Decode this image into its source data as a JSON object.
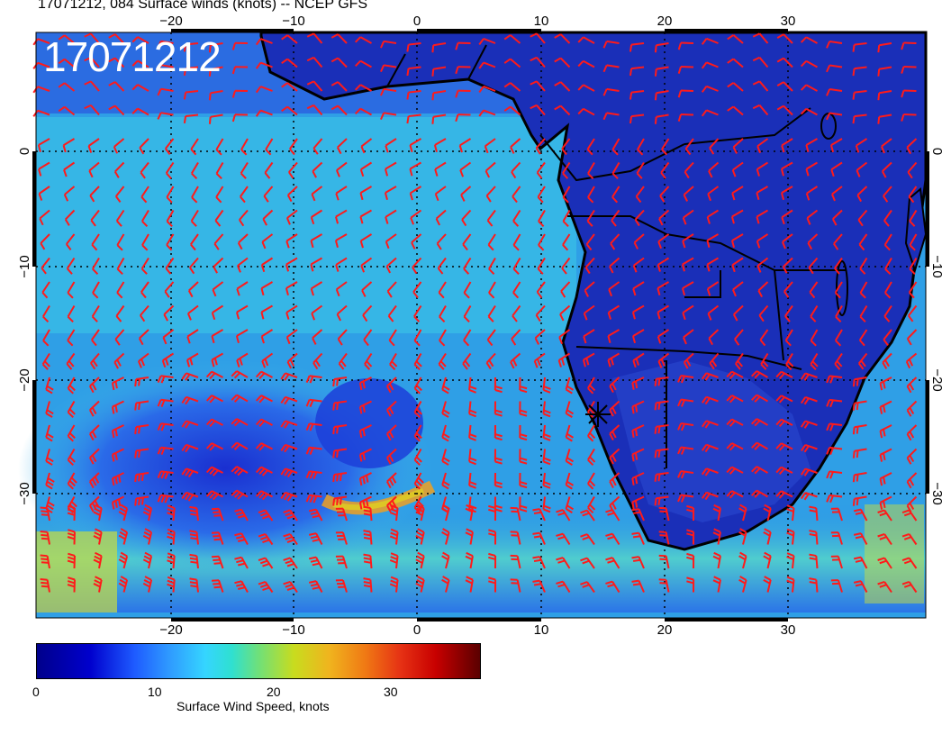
{
  "title": "17071212, 084 Surface winds (knots) -- NCEP GFS",
  "stamp": "17071212",
  "lon_ticks": [
    "−20",
    "−10",
    "0",
    "10",
    "20",
    "30"
  ],
  "lat_ticks": [
    "0",
    "−10",
    "−20",
    "−30"
  ],
  "colorbar": {
    "label": "Surface Wind Speed, knots",
    "ticks": [
      "0",
      "10",
      "20",
      "30"
    ],
    "range": [
      0,
      37
    ]
  },
  "colors": {
    "barb": "#ff1a1a",
    "coast": "#000000",
    "ocean_low": "#1e50e6",
    "ocean_mid": "#32c8e6"
  }
}
